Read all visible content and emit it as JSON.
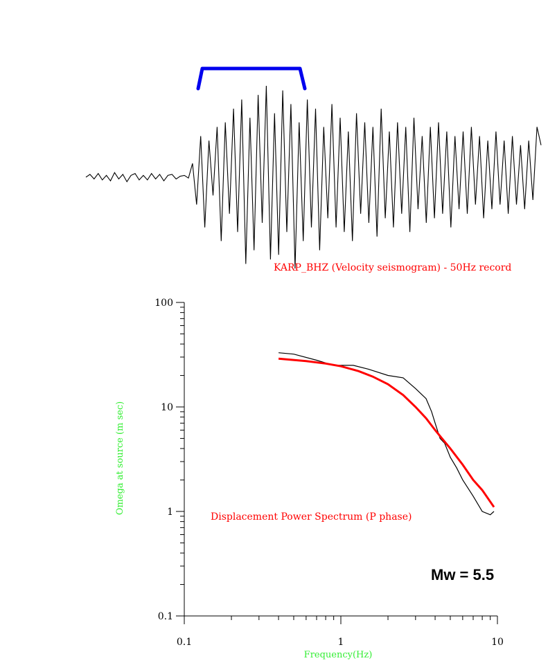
{
  "colors": {
    "bracket": "#0000ee",
    "model_curve": "#ff0000",
    "observed_curve": "#000000",
    "caption": "#ff0000",
    "axis_label": "#33ee33"
  },
  "chart_data": [
    {
      "type": "line",
      "caption": "KARP_BHZ (Velocity seismogram) - 50Hz record",
      "series": [
        {
          "values": [
            0.0,
            0.03,
            -0.02,
            0.04,
            -0.03,
            0.02,
            -0.04,
            0.05,
            -0.02,
            0.03,
            -0.05,
            0.02,
            0.04,
            -0.03,
            0.02,
            -0.03,
            0.04,
            -0.02,
            0.03,
            -0.04,
            0.02,
            0.03,
            -0.02,
            0.01,
            0.02,
            -0.01,
            0.15,
            -0.3,
            0.45,
            -0.55,
            0.4,
            -0.2,
            0.55,
            -0.7,
            0.6,
            -0.4,
            0.75,
            -0.6,
            0.85,
            -0.95,
            0.65,
            -0.8,
            0.9,
            -0.5,
            1.0,
            -0.9,
            0.7,
            -0.85,
            0.95,
            -0.6,
            0.8,
            -1.0,
            0.6,
            -0.7,
            0.85,
            -0.55,
            0.75,
            -0.8,
            0.55,
            -0.45,
            0.8,
            -0.55,
            0.65,
            -0.6,
            0.5,
            -0.7,
            0.7,
            -0.4,
            0.6,
            -0.5,
            0.55,
            -0.65,
            0.75,
            -0.45,
            0.5,
            -0.55,
            0.6,
            -0.4,
            0.55,
            -0.6,
            0.65,
            -0.35,
            0.45,
            -0.5,
            0.55,
            -0.45,
            0.6,
            -0.4,
            0.5,
            -0.55,
            0.45,
            -0.35,
            0.5,
            -0.4,
            0.55,
            -0.3,
            0.45,
            -0.45,
            0.4,
            -0.35,
            0.5,
            -0.3,
            0.4,
            -0.4,
            0.45,
            -0.3,
            0.35,
            -0.35,
            0.4,
            -0.25,
            0.55,
            0.35
          ]
        }
      ]
    },
    {
      "type": "line",
      "x_scale": "log",
      "y_scale": "log",
      "xlim": [
        0.1,
        10
      ],
      "ylim": [
        0.1,
        100
      ],
      "xlabel": "Frequency(Hz)",
      "ylabel": "Omega at source (m sec)",
      "x_ticks": [
        "0.1",
        "1",
        "10"
      ],
      "y_ticks": [
        "0.1",
        "1",
        "10",
        "100"
      ],
      "annotation": "Displacement Power Spectrum (P phase)",
      "magnitude_label": "Mw = 5.5",
      "series": [
        {
          "style": "observed",
          "x": [
            0.4,
            0.5,
            0.7,
            0.9,
            1.2,
            1.5,
            2.0,
            2.5,
            3.0,
            3.5,
            3.8,
            4.0,
            4.3,
            4.6,
            5.0,
            5.5,
            6.0,
            7.0,
            8.0,
            9.0,
            9.5
          ],
          "y": [
            33,
            32,
            28,
            25,
            25,
            23,
            20,
            19,
            15,
            12,
            9,
            7,
            5,
            4.5,
            3.3,
            2.6,
            2.0,
            1.4,
            1.0,
            0.93,
            1.0
          ]
        },
        {
          "style": "model",
          "x": [
            0.4,
            0.6,
            0.8,
            1.0,
            1.3,
            1.6,
            2.0,
            2.5,
            3.0,
            3.5,
            4.0,
            5.0,
            6.0,
            7.0,
            8.0,
            9.5
          ],
          "y": [
            29,
            27.5,
            26,
            24.5,
            22,
            19.5,
            16.5,
            13,
            10,
            7.8,
            6.0,
            4.0,
            2.8,
            2.0,
            1.6,
            1.1
          ]
        }
      ]
    }
  ]
}
